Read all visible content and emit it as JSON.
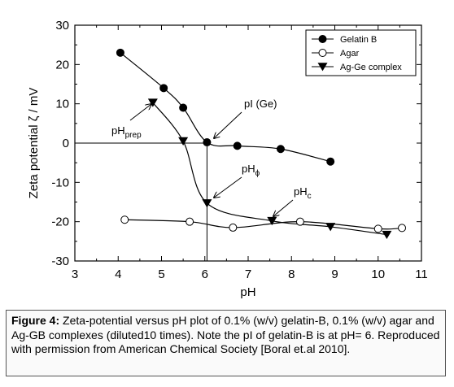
{
  "chart_data": {
    "type": "line",
    "title": "",
    "xlabel": "pH",
    "ylabel": "Zeta potential ζ / mV",
    "xlim": [
      3,
      11
    ],
    "ylim": [
      -30,
      30
    ],
    "xticks": [
      "3",
      "4",
      "5",
      "6",
      "7",
      "8",
      "9",
      "10",
      "11"
    ],
    "yticks": [
      "30",
      "20",
      "10",
      "0",
      "-10",
      "-20",
      "-30"
    ],
    "grid": false,
    "legend_position": "top-right",
    "series": [
      {
        "name": "Gelatin B",
        "marker": "filled-circle",
        "x": [
          4.05,
          5.05,
          5.5,
          6.05,
          6.75,
          7.75,
          8.9
        ],
        "y": [
          23,
          14,
          9,
          0.2,
          -0.7,
          -1.5,
          -4.7
        ]
      },
      {
        "name": "Agar",
        "marker": "open-circle",
        "x": [
          4.15,
          5.65,
          6.65,
          8.2,
          10.0,
          10.55
        ],
        "y": [
          -19.5,
          -20,
          -21.5,
          -20,
          -21.8,
          -21.6
        ]
      },
      {
        "name": "Ag-Ge complex",
        "marker": "filled-triangle",
        "x": [
          4.8,
          5.5,
          6.05,
          7.55,
          8.9,
          10.2
        ],
        "y": [
          10.3,
          0.5,
          -15.3,
          -19.8,
          -21.3,
          -23.3
        ]
      }
    ],
    "annotations": [
      {
        "id": "pI",
        "text": "pI (Ge)"
      },
      {
        "id": "pHprep",
        "base": "pH",
        "sub": "prep"
      },
      {
        "id": "pHphi",
        "base": "pH",
        "sub": "ϕ"
      },
      {
        "id": "pHc",
        "base": "pH",
        "sub": "c"
      }
    ]
  },
  "caption": {
    "label": "Figure 4:",
    "text": " Zeta-potential versus pH plot of 0.1% (w/v) gelatin-B, 0.1% (w/v) agar and Ag-GB complexes (diluted10 times). Note the pI of gelatin-B is at pH= 6. Reproduced with permission from American Chemical Society [Boral et.al 2010]."
  }
}
